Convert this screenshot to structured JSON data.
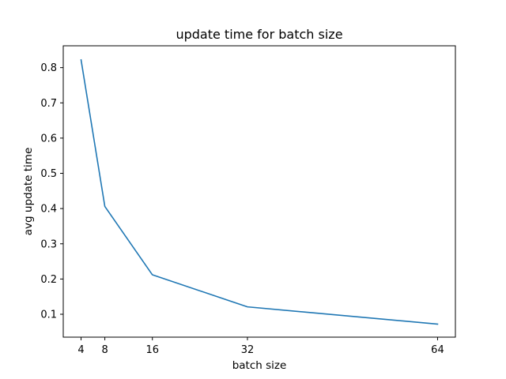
{
  "chart_data": {
    "type": "line",
    "title": "update time for batch size",
    "xlabel": "batch size",
    "ylabel": "avg update time",
    "x": [
      4,
      8,
      16,
      32,
      64
    ],
    "xticks": [
      4,
      8,
      16,
      32,
      64
    ],
    "xlim": [
      1,
      67
    ],
    "ylim": [
      0.035,
      0.862
    ],
    "yticks": [
      0.1,
      0.2,
      0.3,
      0.4,
      0.5,
      0.6,
      0.7,
      0.8
    ],
    "ytick_labels": [
      "0.1",
      "0.2",
      "0.3",
      "0.4",
      "0.5",
      "0.6",
      "0.7",
      "0.8"
    ],
    "grid": false,
    "series": [
      {
        "name": "avg update time",
        "color": "#1f77b4",
        "values": [
          0.822,
          0.406,
          0.212,
          0.121,
          0.072
        ]
      }
    ]
  }
}
